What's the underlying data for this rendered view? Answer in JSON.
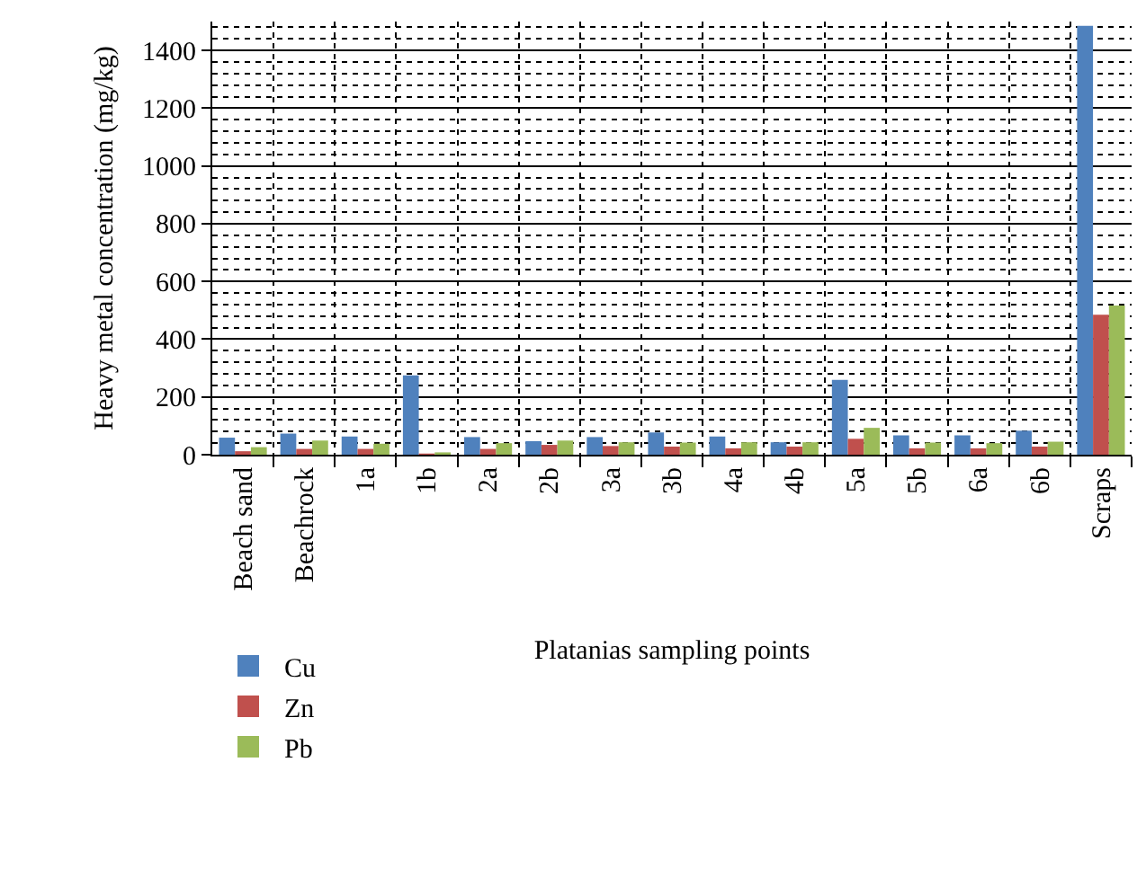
{
  "chart_data": {
    "type": "bar",
    "xlabel": "Platanias sampling points",
    "ylabel": "Heavy metal concentration (mg/kg)",
    "categories": [
      "Beach sand",
      "Beachrock",
      "1a",
      "1b",
      "2a",
      "2b",
      "3a",
      "3b",
      "4a",
      "4b",
      "5a",
      "5b",
      "6a",
      "6b",
      "Scraps"
    ],
    "series": [
      {
        "name": "Cu",
        "color": "#4f81bd",
        "values": [
          59,
          73,
          63,
          275,
          61,
          47,
          61,
          77,
          63,
          43,
          259,
          67,
          67,
          83,
          1485
        ]
      },
      {
        "name": "Zn",
        "color": "#c0504d",
        "values": [
          12,
          20,
          20,
          4,
          20,
          34,
          30,
          28,
          22,
          28,
          55,
          22,
          22,
          28,
          485
        ]
      },
      {
        "name": "Pb",
        "color": "#9bbb59",
        "values": [
          26,
          49,
          38,
          8,
          40,
          49,
          43,
          42,
          43,
          43,
          93,
          42,
          40,
          45,
          517
        ]
      }
    ],
    "ylim": [
      0,
      1500
    ],
    "yticks": [
      0,
      200,
      400,
      600,
      800,
      1000,
      1200,
      1400
    ],
    "grid": "y",
    "legend": "bottom left"
  }
}
